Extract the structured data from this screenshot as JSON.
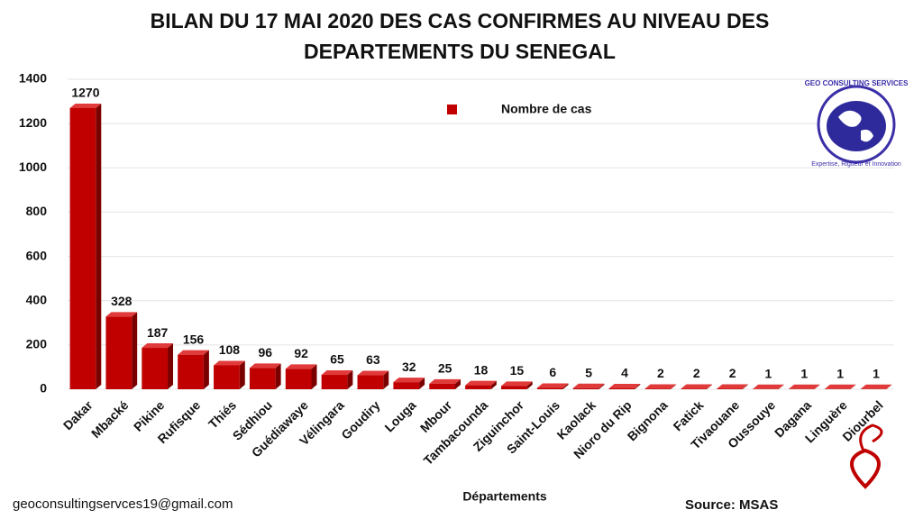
{
  "chart_data": {
    "type": "bar",
    "title": "BILAN DU 17 MAI 2020 DES CAS CONFIRMES AU NIVEAU DES DEPARTEMENTS DU SENEGAL",
    "categories": [
      "Dakar",
      "Mbacké",
      "Pikine",
      "Rufisque",
      "Thiés",
      "Sédhiou",
      "Guédiawaye",
      "Vélingara",
      "Goudiry",
      "Louga",
      "Mbour",
      "Tambacounda",
      "Ziguinchor",
      "Saint-Louis",
      "Kaolack",
      "Nioro du Rip",
      "Bignona",
      "Fatick",
      "Tivaouane",
      "Oussouye",
      "Dagana",
      "Linguère",
      "Diourbel"
    ],
    "series": [
      {
        "name": "Nombre de cas",
        "color": "#c00000",
        "values": [
          1270,
          328,
          187,
          156,
          108,
          96,
          92,
          65,
          63,
          32,
          25,
          18,
          15,
          6,
          5,
          4,
          2,
          2,
          2,
          1,
          1,
          1,
          1
        ]
      }
    ],
    "x_label": "Départements",
    "ylim": [
      0,
      1400
    ],
    "yticks": [
      0,
      200,
      400,
      600,
      800,
      1000,
      1200,
      1400
    ],
    "grid": true,
    "footer_email": "geoconsultingservces19@gmail.com",
    "source": "Source: MSAS",
    "logo_text": "GEO CONSULTING SERVICES",
    "logo_slogan": "Expertise, Rigueur et Innovation"
  }
}
